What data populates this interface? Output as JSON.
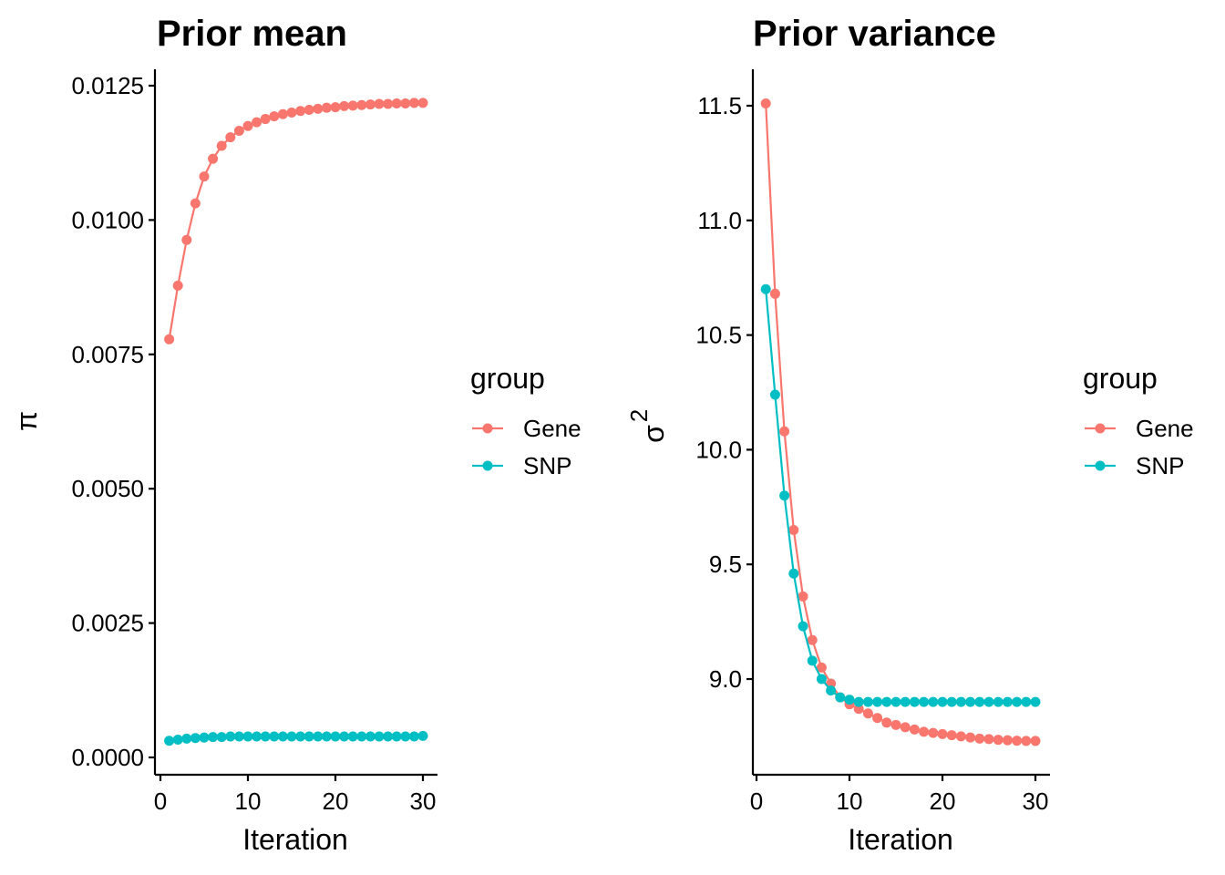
{
  "chart_data": [
    {
      "type": "line",
      "title": "Prior mean",
      "xlabel": "Iteration",
      "ylabel": "π",
      "xlim": [
        0,
        30
      ],
      "ylim": [
        0.0,
        0.0125
      ],
      "xticks": [
        0,
        10,
        20,
        30
      ],
      "xtick_labels": [
        "0",
        "10",
        "20",
        "30"
      ],
      "yticks": [
        0.0,
        0.0025,
        0.005,
        0.0075,
        0.01,
        0.0125
      ],
      "ytick_labels": [
        "0.0000",
        "0.0025",
        "0.0050",
        "0.0075",
        "0.0100",
        "0.0125"
      ],
      "legend_title": "group",
      "legend_position": "right",
      "x": [
        1,
        2,
        3,
        4,
        5,
        6,
        7,
        8,
        9,
        10,
        11,
        12,
        13,
        14,
        15,
        16,
        17,
        18,
        19,
        20,
        21,
        22,
        23,
        24,
        25,
        26,
        27,
        28,
        29,
        30
      ],
      "series": [
        {
          "name": "Gene",
          "color": "#F8766D",
          "values": [
            0.00778,
            0.00878,
            0.00963,
            0.01031,
            0.01081,
            0.01114,
            0.01138,
            0.01154,
            0.01166,
            0.01175,
            0.01182,
            0.01188,
            0.01193,
            0.01197,
            0.012,
            0.01203,
            0.01205,
            0.01207,
            0.01209,
            0.0121,
            0.01212,
            0.01213,
            0.01214,
            0.01215,
            0.01216,
            0.01216,
            0.01217,
            0.01217,
            0.01218,
            0.01218
          ]
        },
        {
          "name": "SNP",
          "color": "#00BFC4",
          "values": [
            0.00031,
            0.00033,
            0.00035,
            0.00036,
            0.00037,
            0.00038,
            0.00038,
            0.00039,
            0.00039,
            0.00039,
            0.00039,
            0.00039,
            0.00039,
            0.00039,
            0.00039,
            0.00039,
            0.00039,
            0.00039,
            0.00039,
            0.00039,
            0.00039,
            0.00039,
            0.00039,
            0.00039,
            0.00039,
            0.00039,
            0.00039,
            0.00039,
            0.00039,
            0.0004
          ]
        }
      ]
    },
    {
      "type": "line",
      "title": "Prior variance",
      "xlabel": "Iteration",
      "ylabel": "σ",
      "ylabel_superscript": "2",
      "xlim": [
        0,
        30
      ],
      "ylim": [
        8.6,
        11.6
      ],
      "xticks": [
        0,
        10,
        20,
        30
      ],
      "xtick_labels": [
        "0",
        "10",
        "20",
        "30"
      ],
      "yticks": [
        9.0,
        9.5,
        10.0,
        10.5,
        11.0,
        11.5
      ],
      "ytick_labels": [
        "9.0",
        "9.5",
        "10.0",
        "10.5",
        "11.0",
        "11.5"
      ],
      "legend_title": "group",
      "legend_position": "right",
      "x": [
        1,
        2,
        3,
        4,
        5,
        6,
        7,
        8,
        9,
        10,
        11,
        12,
        13,
        14,
        15,
        16,
        17,
        18,
        19,
        20,
        21,
        22,
        23,
        24,
        25,
        26,
        27,
        28,
        29,
        30
      ],
      "series": [
        {
          "name": "Gene",
          "color": "#F8766D",
          "values": [
            11.51,
            10.68,
            10.08,
            9.65,
            9.36,
            9.17,
            9.05,
            8.98,
            8.92,
            8.89,
            8.87,
            8.85,
            8.83,
            8.81,
            8.8,
            8.79,
            8.78,
            8.77,
            8.765,
            8.76,
            8.755,
            8.75,
            8.745,
            8.74,
            8.738,
            8.735,
            8.733,
            8.731,
            8.73,
            8.73
          ]
        },
        {
          "name": "SNP",
          "color": "#00BFC4",
          "values": [
            10.7,
            10.24,
            9.8,
            9.46,
            9.23,
            9.08,
            9.0,
            8.95,
            8.92,
            8.91,
            8.9,
            8.9,
            8.9,
            8.9,
            8.9,
            8.9,
            8.9,
            8.9,
            8.9,
            8.9,
            8.9,
            8.9,
            8.9,
            8.9,
            8.9,
            8.9,
            8.9,
            8.9,
            8.9,
            8.9
          ]
        }
      ]
    }
  ]
}
